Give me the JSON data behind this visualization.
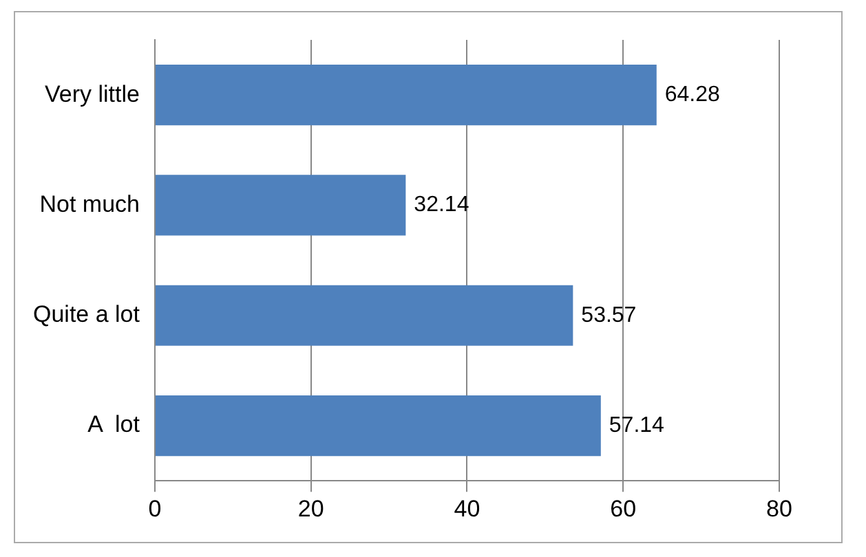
{
  "chart_data": {
    "type": "bar",
    "orientation": "horizontal",
    "categories": [
      "Very little",
      "Not much",
      "Quite a lot",
      "A  lot"
    ],
    "values": [
      64.28,
      32.14,
      53.57,
      57.14
    ],
    "color": "#4f81bd",
    "xlim": [
      0,
      80
    ],
    "xticks": [
      0,
      20,
      40,
      60,
      80
    ],
    "grid": "x",
    "data_labels": true,
    "legend": false
  }
}
